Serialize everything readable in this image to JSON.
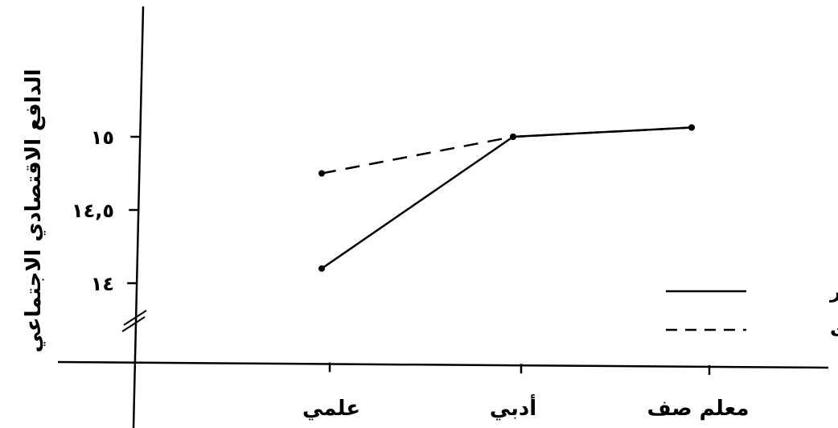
{
  "chart_data": {
    "type": "line",
    "ylabel": "الدافع الاقتصادي الاجتماعي",
    "categories": [
      "علمي",
      "أدبي",
      "معلم صف"
    ],
    "yticks": [
      {
        "value": 14,
        "label": "١٤"
      },
      {
        "value": 14.5,
        "label": "١٤,٥"
      },
      {
        "value": 15,
        "label": "١٥"
      }
    ],
    "ylim": [
      13.5,
      15.5
    ],
    "axis_break": true,
    "grid": false,
    "legend_position": "right",
    "series": [
      {
        "name": "ذكور",
        "style": "solid",
        "values": [
          14.1,
          15.0,
          15.03
        ]
      },
      {
        "name": "إناث",
        "style": "dashed",
        "values": [
          14.75,
          15.0,
          15.03
        ]
      }
    ],
    "colors": {
      "line": "#000000",
      "background": "#ffffff"
    }
  }
}
